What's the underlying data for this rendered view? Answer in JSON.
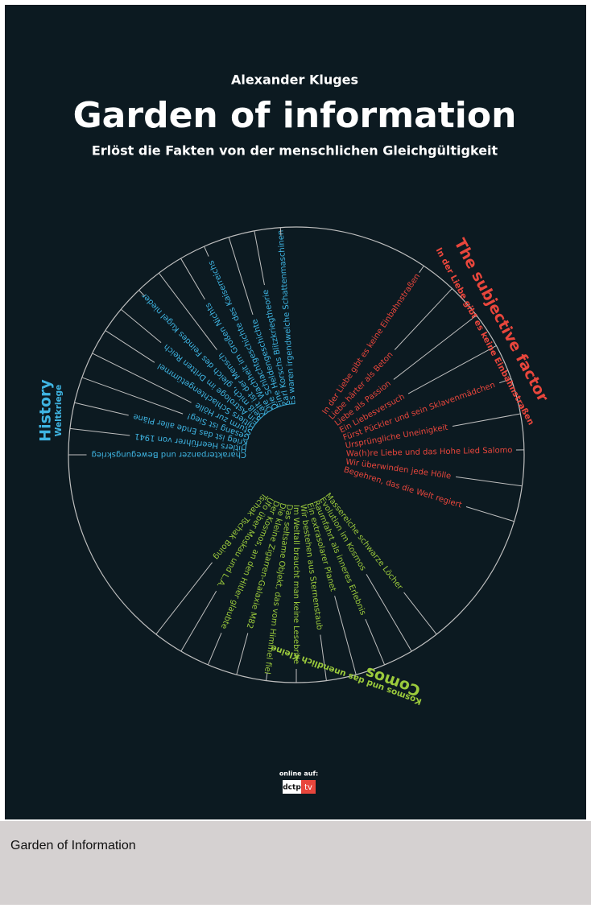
{
  "header": {
    "author": "Alexander Kluges",
    "title": "Garden of information",
    "subtitle": "Erlöst die Fakten von der menschlichen Gleichgültigkeit"
  },
  "sections": [
    {
      "title": "History",
      "subtitle": "Weltkriege",
      "color": "#3fb5e3",
      "items": [
        "Charakterpanzer und Bewegungskrieg",
        "Hitlers Heerführer von 1941",
        "Krieg ist das Ende aller Pläne",
        "Gesang ist Sieg!",
        "Sturm zur Hölle",
        "Hitlers Schlachtengetümmel",
        "Ein Astrologe im Dritten Reich",
        "Reiß mich, gleich des Feindes Kugel nieder",
        "Kalt ist der Mensch",
        "Die Wachheit im Großen Nichts",
        "Die Schlachtgeschichte des Kaiserreichs",
        "Eine Heldengeschichte",
        "Karl Korschs Blitzkriegtheorie",
        "Es waren irgendwelche Schattenmaschinen"
      ]
    },
    {
      "title": "The subjective factor",
      "subtitle": "In der Liebe gibt es keine Einbahnstraßen",
      "color": "#e8463c",
      "items": [
        "In der Liebe gibt es keine Einbahnstraßen",
        "Liebe härter als Beton",
        "Liebe als Passion",
        "Ein Liebesversuch",
        "Fürst Pückler und sein Sklavenmädchen",
        "Ursprüngliche Uneinigkeit",
        "Wa(h)re Liebe und das Hohe Lied Salomo",
        "Wir überwinden jede Hölle",
        "Begehren, das die Welt regiert"
      ]
    },
    {
      "title": "Comos",
      "subtitle": "Kosmos und das unendlich Kleine",
      "color": "#9bca3c",
      "items": [
        "Massereiche schwarze Löcher",
        "Evolution im Kosmos",
        "Raumfahrt als inneres Erlebnis",
        "Ein extrasolarer Planet",
        "Wir bestehen aus Sternenstaub",
        "Im Weltall braucht man keine Lesebrille",
        "Das seltsame Objekt, das vom Himmel fiel",
        "Die kleine Zigarren-Galaxie M82",
        "Der Kosmos, an den Hitler glaubte",
        "Ufo über Moskau und L.A.",
        "Tschak Tschak Boing"
      ]
    }
  ],
  "footer": {
    "online": "online auf:",
    "logo_left": "dctp",
    "logo_right": "tv"
  },
  "caption": "Garden of Information"
}
